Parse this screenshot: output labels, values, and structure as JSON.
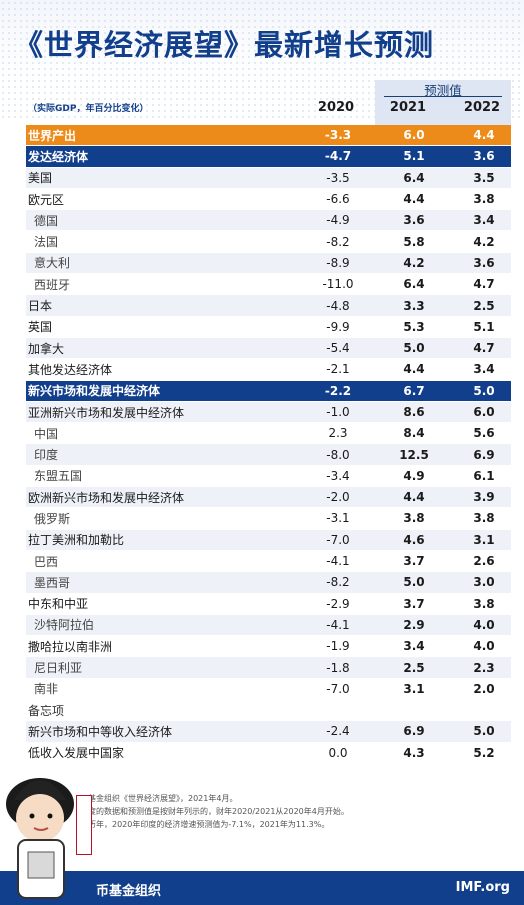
{
  "header": {
    "title": "《世界经济展望》最新增长预测",
    "units": "（实际GDP，年百分比变化）",
    "forecast_label": "预测值",
    "years": [
      "2020",
      "2021",
      "2022"
    ]
  },
  "rows": [
    {
      "name": "世界产出",
      "y2020": "-3.3",
      "y2021": "6.0",
      "y2022": "4.4"
    },
    {
      "name": "发达经济体",
      "y2020": "-4.7",
      "y2021": "5.1",
      "y2022": "3.6"
    },
    {
      "name": "美国",
      "y2020": "-3.5",
      "y2021": "6.4",
      "y2022": "3.5"
    },
    {
      "name": "欧元区",
      "y2020": "-6.6",
      "y2021": "4.4",
      "y2022": "3.8"
    },
    {
      "name": "德国",
      "y2020": "-4.9",
      "y2021": "3.6",
      "y2022": "3.4"
    },
    {
      "name": "法国",
      "y2020": "-8.2",
      "y2021": "5.8",
      "y2022": "4.2"
    },
    {
      "name": "意大利",
      "y2020": "-8.9",
      "y2021": "4.2",
      "y2022": "3.6"
    },
    {
      "name": "西班牙",
      "y2020": "-11.0",
      "y2021": "6.4",
      "y2022": "4.7"
    },
    {
      "name": "日本",
      "y2020": "-4.8",
      "y2021": "3.3",
      "y2022": "2.5"
    },
    {
      "name": "英国",
      "y2020": "-9.9",
      "y2021": "5.3",
      "y2022": "5.1"
    },
    {
      "name": "加拿大",
      "y2020": "-5.4",
      "y2021": "5.0",
      "y2022": "4.7"
    },
    {
      "name": "其他发达经济体",
      "y2020": "-2.1",
      "y2021": "4.4",
      "y2022": "3.4"
    },
    {
      "name": "新兴市场和发展中经济体",
      "y2020": "-2.2",
      "y2021": "6.7",
      "y2022": "5.0"
    },
    {
      "name": "亚洲新兴市场和发展中经济体",
      "y2020": "-1.0",
      "y2021": "8.6",
      "y2022": "6.0"
    },
    {
      "name": "中国",
      "y2020": "2.3",
      "y2021": "8.4",
      "y2022": "5.6"
    },
    {
      "name": "印度",
      "y2020": "-8.0",
      "y2021": "12.5",
      "y2022": "6.9"
    },
    {
      "name": "东盟五国",
      "y2020": "-3.4",
      "y2021": "4.9",
      "y2022": "6.1"
    },
    {
      "name": "欧洲新兴市场和发展中经济体",
      "y2020": "-2.0",
      "y2021": "4.4",
      "y2022": "3.9"
    },
    {
      "name": "俄罗斯",
      "y2020": "-3.1",
      "y2021": "3.8",
      "y2022": "3.8"
    },
    {
      "name": "拉丁美洲和加勒比",
      "y2020": "-7.0",
      "y2021": "4.6",
      "y2022": "3.1"
    },
    {
      "name": "巴西",
      "y2020": "-4.1",
      "y2021": "3.7",
      "y2022": "2.6"
    },
    {
      "name": "墨西哥",
      "y2020": "-8.2",
      "y2021": "5.0",
      "y2022": "3.0"
    },
    {
      "name": "中东和中亚",
      "y2020": "-2.9",
      "y2021": "3.7",
      "y2022": "3.8"
    },
    {
      "name": "沙特阿拉伯",
      "y2020": "-4.1",
      "y2021": "2.9",
      "y2022": "4.0"
    },
    {
      "name": "撒哈拉以南非洲",
      "y2020": "-1.9",
      "y2021": "3.4",
      "y2022": "4.0"
    },
    {
      "name": "尼日利亚",
      "y2020": "-1.8",
      "y2021": "2.5",
      "y2022": "2.3"
    },
    {
      "name": "南非",
      "y2020": "-7.0",
      "y2021": "3.1",
      "y2022": "2.0"
    },
    {
      "name": "备忘项",
      "y2020": "",
      "y2021": "",
      "y2022": ""
    },
    {
      "name": "新兴市场和中等收入经济体",
      "y2020": "-2.4",
      "y2021": "6.9",
      "y2022": "5.0"
    },
    {
      "name": "低收入发展中国家",
      "y2020": "0.0",
      "y2021": "4.3",
      "y2022": "5.2"
    }
  ],
  "footnotes": [
    "基金组织《世界经济展望》，2021年4月。",
    "度的数据和预测值是按财年列示的，财年2020/2021从2020年4月开始。",
    "历年，2020年印度的经济增速预测值为-7.1%，2021年为11.3%。"
  ],
  "footer": {
    "left_text": "币基金组织",
    "right_text": "IMF.org"
  },
  "colors": {
    "world_row": "#ed8b1a",
    "bloc_row": "#123f8c",
    "forecast_column": "#dde6f2",
    "title": "#123f8c"
  }
}
